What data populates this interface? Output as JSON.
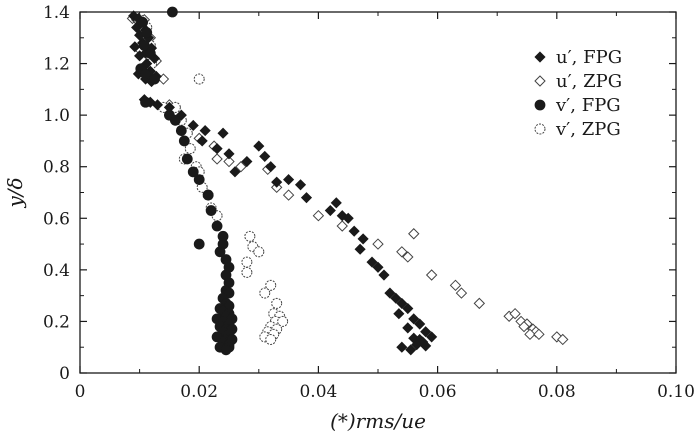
{
  "chart_data": {
    "type": "scatter",
    "xlabel": "(*)rms/ue",
    "ylabel": "y/δ",
    "xlim": [
      0,
      0.1
    ],
    "ylim": [
      0,
      1.4
    ],
    "xticks": [
      0,
      0.02,
      0.04,
      0.06,
      0.08,
      0.1
    ],
    "xtick_labels": [
      "0",
      "0.02",
      "0.04",
      "0.06",
      "0.08",
      "0.10"
    ],
    "yticks": [
      0,
      0.2,
      0.4,
      0.6,
      0.8,
      1.0,
      1.2,
      1.4
    ],
    "ytick_labels": [
      "0",
      "0.2",
      "0.4",
      "0.6",
      "0.8",
      "1.0",
      "1.2",
      "1.4"
    ],
    "grid": false,
    "legend_position": "top-right",
    "series": [
      {
        "name": "u′, FPG",
        "marker": "diamond-filled",
        "color": "#1a1a1a",
        "points": [
          [
            0.009,
            1.385
          ],
          [
            0.0098,
            1.375
          ],
          [
            0.0103,
            1.36
          ],
          [
            0.0095,
            1.34
          ],
          [
            0.011,
            1.33
          ],
          [
            0.01,
            1.31
          ],
          [
            0.0115,
            1.3
          ],
          [
            0.0105,
            1.28
          ],
          [
            0.0092,
            1.265
          ],
          [
            0.012,
            1.26
          ],
          [
            0.011,
            1.24
          ],
          [
            0.01,
            1.23
          ],
          [
            0.0125,
            1.22
          ],
          [
            0.0112,
            1.2
          ],
          [
            0.0103,
            1.18
          ],
          [
            0.0118,
            1.17
          ],
          [
            0.0098,
            1.16
          ],
          [
            0.0128,
            1.15
          ],
          [
            0.011,
            1.14
          ],
          [
            0.012,
            1.13
          ],
          [
            0.0108,
            1.06
          ],
          [
            0.0118,
            1.05
          ],
          [
            0.013,
            1.04
          ],
          [
            0.015,
            1.03
          ],
          [
            0.017,
            1.0
          ],
          [
            0.019,
            0.96
          ],
          [
            0.021,
            0.94
          ],
          [
            0.024,
            0.93
          ],
          [
            0.0205,
            0.9
          ],
          [
            0.023,
            0.87
          ],
          [
            0.025,
            0.85
          ],
          [
            0.03,
            0.88
          ],
          [
            0.028,
            0.82
          ],
          [
            0.031,
            0.84
          ],
          [
            0.032,
            0.8
          ],
          [
            0.026,
            0.78
          ],
          [
            0.033,
            0.74
          ],
          [
            0.035,
            0.75
          ],
          [
            0.037,
            0.73
          ],
          [
            0.038,
            0.68
          ],
          [
            0.042,
            0.63
          ],
          [
            0.043,
            0.66
          ],
          [
            0.044,
            0.61
          ],
          [
            0.045,
            0.6
          ],
          [
            0.046,
            0.55
          ],
          [
            0.0475,
            0.52
          ],
          [
            0.047,
            0.48
          ],
          [
            0.049,
            0.43
          ],
          [
            0.05,
            0.41
          ],
          [
            0.051,
            0.38
          ],
          [
            0.052,
            0.31
          ],
          [
            0.053,
            0.29
          ],
          [
            0.054,
            0.27
          ],
          [
            0.055,
            0.25
          ],
          [
            0.0535,
            0.23
          ],
          [
            0.056,
            0.21
          ],
          [
            0.057,
            0.19
          ],
          [
            0.055,
            0.175
          ],
          [
            0.058,
            0.16
          ],
          [
            0.059,
            0.14
          ],
          [
            0.056,
            0.135
          ],
          [
            0.057,
            0.13
          ],
          [
            0.0575,
            0.12
          ],
          [
            0.0565,
            0.11
          ],
          [
            0.058,
            0.105
          ],
          [
            0.054,
            0.1
          ],
          [
            0.0555,
            0.09
          ]
        ]
      },
      {
        "name": "u′, ZPG",
        "marker": "diamond-open",
        "color": "#444444",
        "points": [
          [
            0.0088,
            1.375
          ],
          [
            0.0095,
            1.37
          ],
          [
            0.0108,
            1.37
          ],
          [
            0.0118,
            1.3
          ],
          [
            0.0102,
            1.25
          ],
          [
            0.0128,
            1.21
          ],
          [
            0.014,
            1.14
          ],
          [
            0.015,
            1.04
          ],
          [
            0.016,
            1.03
          ],
          [
            0.018,
            0.93
          ],
          [
            0.02,
            0.91
          ],
          [
            0.0225,
            0.88
          ],
          [
            0.023,
            0.83
          ],
          [
            0.025,
            0.82
          ],
          [
            0.027,
            0.8
          ],
          [
            0.0315,
            0.79
          ],
          [
            0.033,
            0.72
          ],
          [
            0.035,
            0.69
          ],
          [
            0.04,
            0.61
          ],
          [
            0.044,
            0.57
          ],
          [
            0.05,
            0.5
          ],
          [
            0.054,
            0.47
          ],
          [
            0.055,
            0.45
          ],
          [
            0.056,
            0.54
          ],
          [
            0.059,
            0.38
          ],
          [
            0.063,
            0.34
          ],
          [
            0.064,
            0.31
          ],
          [
            0.067,
            0.27
          ],
          [
            0.072,
            0.22
          ],
          [
            0.073,
            0.23
          ],
          [
            0.074,
            0.2
          ],
          [
            0.075,
            0.19
          ],
          [
            0.0745,
            0.18
          ],
          [
            0.076,
            0.17
          ],
          [
            0.0765,
            0.16
          ],
          [
            0.0755,
            0.15
          ],
          [
            0.077,
            0.15
          ],
          [
            0.08,
            0.14
          ],
          [
            0.081,
            0.13
          ]
        ]
      },
      {
        "name": "v′, FPG",
        "marker": "circle-filled",
        "color": "#1a1a1a",
        "points": [
          [
            0.0155,
            1.4
          ],
          [
            0.0105,
            1.36
          ],
          [
            0.0112,
            1.32
          ],
          [
            0.0108,
            1.27
          ],
          [
            0.0118,
            1.24
          ],
          [
            0.0102,
            1.18
          ],
          [
            0.011,
            1.16
          ],
          [
            0.0125,
            1.14
          ],
          [
            0.011,
            1.05
          ],
          [
            0.015,
            1.0
          ],
          [
            0.016,
            0.98
          ],
          [
            0.017,
            0.94
          ],
          [
            0.0175,
            0.9
          ],
          [
            0.018,
            0.83
          ],
          [
            0.019,
            0.78
          ],
          [
            0.02,
            0.75
          ],
          [
            0.0215,
            0.69
          ],
          [
            0.022,
            0.63
          ],
          [
            0.023,
            0.57
          ],
          [
            0.024,
            0.53
          ],
          [
            0.02,
            0.5
          ],
          [
            0.024,
            0.5
          ],
          [
            0.0235,
            0.47
          ],
          [
            0.0245,
            0.44
          ],
          [
            0.025,
            0.41
          ],
          [
            0.0245,
            0.38
          ],
          [
            0.025,
            0.35
          ],
          [
            0.0245,
            0.32
          ],
          [
            0.025,
            0.31
          ],
          [
            0.024,
            0.29
          ],
          [
            0.0245,
            0.27
          ],
          [
            0.025,
            0.26
          ],
          [
            0.0235,
            0.25
          ],
          [
            0.024,
            0.24
          ],
          [
            0.025,
            0.23
          ],
          [
            0.0245,
            0.22
          ],
          [
            0.023,
            0.21
          ],
          [
            0.0255,
            0.21
          ],
          [
            0.024,
            0.2
          ],
          [
            0.025,
            0.19
          ],
          [
            0.0235,
            0.18
          ],
          [
            0.0245,
            0.17
          ],
          [
            0.0255,
            0.17
          ],
          [
            0.024,
            0.16
          ],
          [
            0.025,
            0.15
          ],
          [
            0.023,
            0.14
          ],
          [
            0.0245,
            0.13
          ],
          [
            0.0255,
            0.13
          ],
          [
            0.024,
            0.12
          ],
          [
            0.025,
            0.11
          ],
          [
            0.0235,
            0.1
          ],
          [
            0.025,
            0.1
          ],
          [
            0.0245,
            0.09
          ]
        ]
      },
      {
        "name": "v′, ZPG",
        "marker": "circle-open",
        "color": "#444444",
        "points": [
          [
            0.01,
            1.37
          ],
          [
            0.0112,
            1.34
          ],
          [
            0.0118,
            1.27
          ],
          [
            0.012,
            1.2
          ],
          [
            0.02,
            1.14
          ],
          [
            0.014,
            1.03
          ],
          [
            0.016,
            1.03
          ],
          [
            0.017,
            0.98
          ],
          [
            0.018,
            0.93
          ],
          [
            0.0185,
            0.87
          ],
          [
            0.0175,
            0.83
          ],
          [
            0.0195,
            0.8
          ],
          [
            0.02,
            0.78
          ],
          [
            0.0205,
            0.72
          ],
          [
            0.0215,
            0.69
          ],
          [
            0.022,
            0.64
          ],
          [
            0.023,
            0.61
          ],
          [
            0.0285,
            0.53
          ],
          [
            0.029,
            0.49
          ],
          [
            0.03,
            0.47
          ],
          [
            0.028,
            0.43
          ],
          [
            0.028,
            0.39
          ],
          [
            0.032,
            0.34
          ],
          [
            0.031,
            0.31
          ],
          [
            0.033,
            0.27
          ],
          [
            0.0325,
            0.23
          ],
          [
            0.0335,
            0.22
          ],
          [
            0.0328,
            0.2
          ],
          [
            0.034,
            0.2
          ],
          [
            0.032,
            0.18
          ],
          [
            0.033,
            0.17
          ],
          [
            0.0315,
            0.16
          ],
          [
            0.0325,
            0.15
          ],
          [
            0.031,
            0.14
          ],
          [
            0.032,
            0.13
          ]
        ]
      }
    ]
  }
}
